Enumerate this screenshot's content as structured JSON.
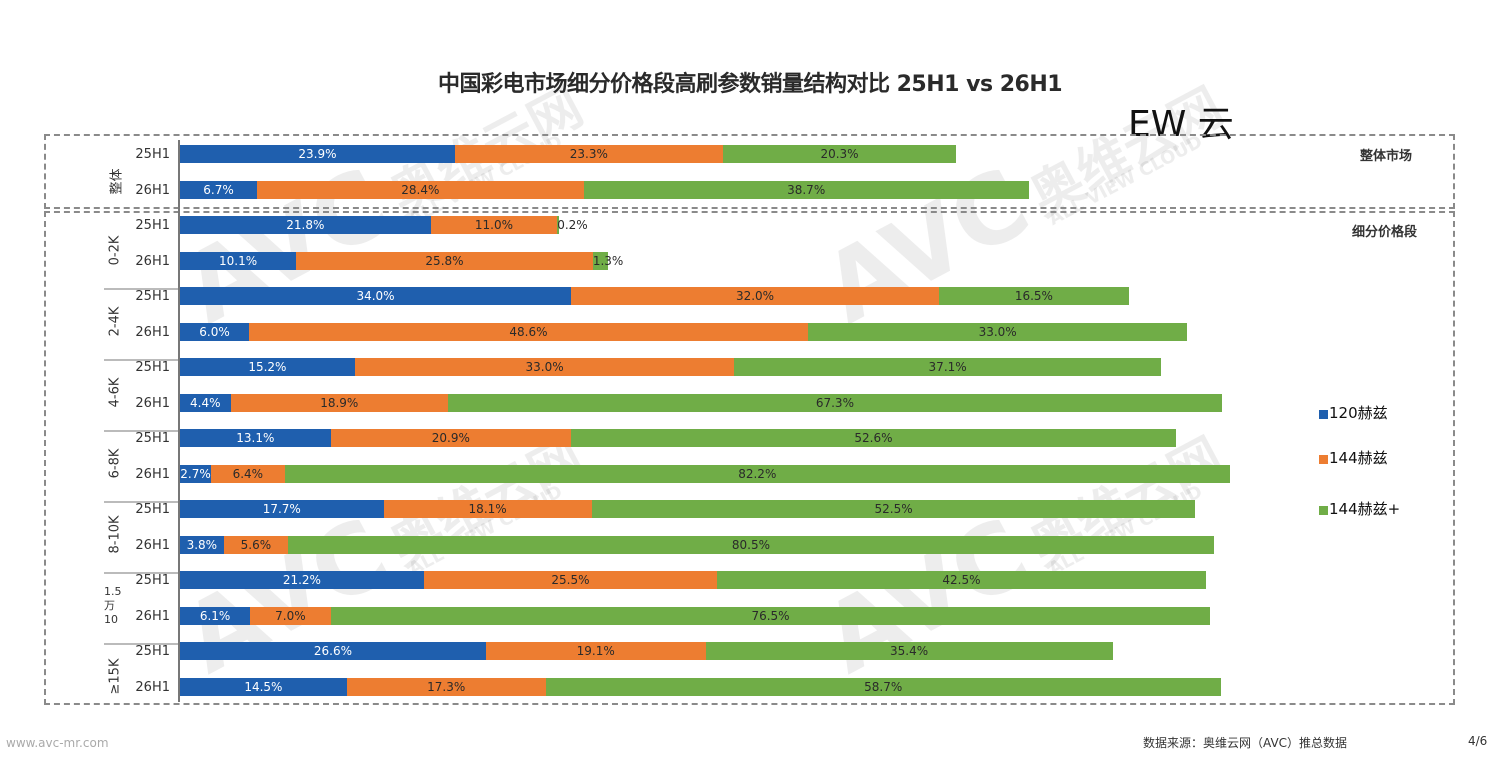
{
  "title": "中国彩电市场细分价格段高刷参数销量结构对比 25H1 vs 26H1",
  "corner_text": "EW 云",
  "overall_label": "整体市场",
  "segment_label": "细分价格段",
  "source": "数据来源：奥维云网（AVC）推总数据",
  "page_number": "4/6",
  "website": "www.avc-mr.com",
  "watermark": {
    "brand": "AVC",
    "cn": "奥维云网",
    "en": "ALL VIEW CLOUD"
  },
  "colors": {
    "hz120": "#1f5fae",
    "hz144": "#ed7d31",
    "hz144plus": "#70ad47"
  },
  "legend": [
    "120赫兹",
    "144赫兹",
    "144赫兹+"
  ],
  "chart_data": {
    "type": "bar",
    "stacked": true,
    "orientation": "horizontal",
    "series_names": [
      "120赫兹",
      "144赫兹",
      "144赫兹+"
    ],
    "groups": [
      {
        "name": "整体",
        "rows": [
          {
            "period": "25H1",
            "values": [
              23.9,
              23.3,
              20.3
            ],
            "labels": [
              "23.9%",
              "23.3%",
              "20.3%"
            ]
          },
          {
            "period": "26H1",
            "values": [
              6.7,
              28.4,
              38.7
            ],
            "labels": [
              "6.7%",
              "28.4%",
              "38.7%"
            ]
          }
        ]
      },
      {
        "name": "0-2K",
        "rows": [
          {
            "period": "25H1",
            "values": [
              21.8,
              11.0,
              0.2
            ],
            "labels": [
              "21.8%",
              "11.0%",
              "0.2%"
            ]
          },
          {
            "period": "26H1",
            "values": [
              10.1,
              25.8,
              1.3
            ],
            "labels": [
              "10.1%",
              "25.8%",
              "1.3%"
            ]
          }
        ]
      },
      {
        "name": "2-4K",
        "rows": [
          {
            "period": "25H1",
            "values": [
              34.0,
              32.0,
              16.5
            ],
            "labels": [
              "34.0%",
              "32.0%",
              "16.5%"
            ]
          },
          {
            "period": "26H1",
            "values": [
              6.0,
              48.6,
              33.0
            ],
            "labels": [
              "6.0%",
              "48.6%",
              "33.0%"
            ]
          }
        ]
      },
      {
        "name": "4-6K",
        "rows": [
          {
            "period": "25H1",
            "values": [
              15.2,
              33.0,
              37.1
            ],
            "labels": [
              "15.2%",
              "33.0%",
              "37.1%"
            ]
          },
          {
            "period": "26H1",
            "values": [
              4.4,
              18.9,
              67.3
            ],
            "labels": [
              "4.4%",
              "18.9%",
              "67.3%"
            ]
          }
        ]
      },
      {
        "name": "6-8K",
        "rows": [
          {
            "period": "25H1",
            "values": [
              13.1,
              20.9,
              52.6
            ],
            "labels": [
              "13.1%",
              "20.9%",
              "52.6%"
            ]
          },
          {
            "period": "26H1",
            "values": [
              2.7,
              6.4,
              82.2
            ],
            "labels": [
              "2.7%",
              "6.4%",
              "82.2%"
            ]
          }
        ]
      },
      {
        "name": "8-10K",
        "rows": [
          {
            "period": "25H1",
            "values": [
              17.7,
              18.1,
              52.5
            ],
            "labels": [
              "17.7%",
              "18.1%",
              "52.5%"
            ]
          },
          {
            "period": "26H1",
            "values": [
              3.8,
              5.6,
              80.5
            ],
            "labels": [
              "3.8%",
              "5.6%",
              "80.5%"
            ]
          }
        ]
      },
      {
        "name": "1.5\n万\n10",
        "rows": [
          {
            "period": "25H1",
            "values": [
              21.2,
              25.5,
              42.5
            ],
            "labels": [
              "21.2%",
              "25.5%",
              "42.5%"
            ]
          },
          {
            "period": "26H1",
            "values": [
              6.1,
              7.0,
              76.5
            ],
            "labels": [
              "6.1%",
              "7.0%",
              "76.5%"
            ]
          }
        ]
      },
      {
        "name": "≥15K",
        "rows": [
          {
            "period": "25H1",
            "values": [
              26.6,
              19.1,
              35.4
            ],
            "labels": [
              "26.6%",
              "19.1%",
              "35.4%"
            ]
          },
          {
            "period": "26H1",
            "values": [
              14.5,
              17.3,
              58.7
            ],
            "labels": [
              "14.5%",
              "17.3%",
              "58.7%"
            ]
          }
        ]
      }
    ]
  }
}
